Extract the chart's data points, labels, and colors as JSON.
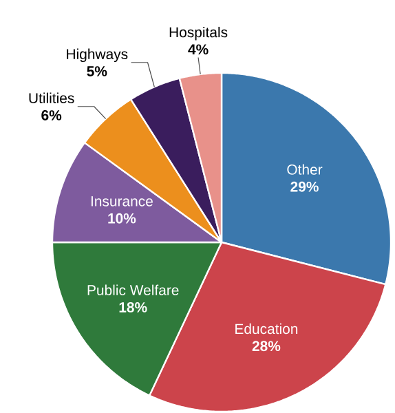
{
  "chart_data": {
    "type": "pie",
    "categories": [
      "Other",
      "Education",
      "Public Welfare",
      "Insurance",
      "Utilities",
      "Highways",
      "Hospitals"
    ],
    "values": [
      29,
      28,
      18,
      10,
      6,
      5,
      4
    ],
    "value_labels": [
      "29%",
      "28%",
      "18%",
      "10%",
      "6%",
      "5%",
      "4%"
    ],
    "colors": [
      "#3b78ad",
      "#cc444b",
      "#2f7a3b",
      "#7e5b9e",
      "#ec8f1d",
      "#3a1d5d",
      "#e8918a"
    ]
  }
}
